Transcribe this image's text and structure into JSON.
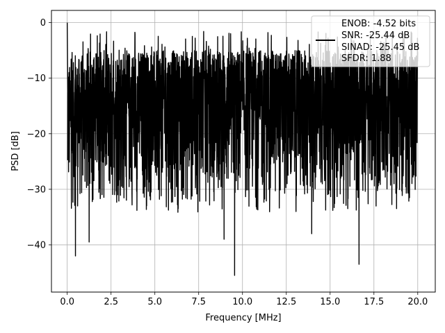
{
  "chart_data": {
    "type": "line",
    "xlabel": "Frequency [MHz]",
    "ylabel": "PSD [dB]",
    "xlim": [
      -0.9,
      21.0
    ],
    "ylim": [
      -48.5,
      2.2
    ],
    "xticks": [
      0.0,
      2.5,
      5.0,
      7.5,
      10.0,
      12.5,
      15.0,
      17.5,
      20.0
    ],
    "xtick_labels": [
      "0.0",
      "2.5",
      "5.0",
      "7.5",
      "10.0",
      "12.5",
      "15.0",
      "17.5",
      "20.0"
    ],
    "yticks": [
      0,
      -10,
      -20,
      -30,
      -40
    ],
    "ytick_labels": [
      "0",
      "−10",
      "−20",
      "−30",
      "−40"
    ],
    "grid": true,
    "legend_position": "top-right",
    "legend": [
      "ENOB: -4.52 bits",
      "SNR: -25.44 dB",
      "SINAD: -25.45 dB",
      "SFDR: 1.88"
    ],
    "series": [
      {
        "color": "#000000",
        "x_range": [
          0.0,
          20.0
        ],
        "noise_floor_range": [
          -35.0,
          -5.0
        ],
        "peak": {
          "x": 0.0,
          "y": 0.0
        },
        "notable_dips": [
          {
            "x": 0.47,
            "y": -42.0
          },
          {
            "x": 1.25,
            "y": -39.5
          },
          {
            "x": 8.95,
            "y": -39.0
          },
          {
            "x": 9.55,
            "y": -45.5
          },
          {
            "x": 13.95,
            "y": -38.0
          },
          {
            "x": 16.65,
            "y": -43.5
          }
        ]
      }
    ]
  }
}
